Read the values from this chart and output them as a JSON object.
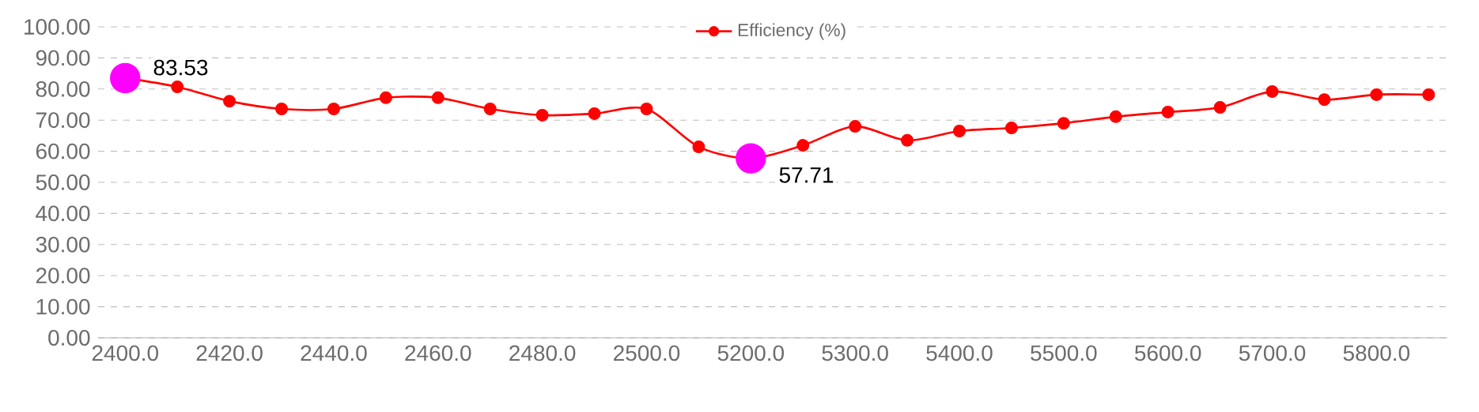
{
  "chart_data": {
    "type": "line",
    "categories": [
      "2400.0",
      null,
      "2420.0",
      null,
      "2440.0",
      null,
      "2460.0",
      null,
      "2480.0",
      null,
      "2500.0",
      null,
      "5200.0",
      null,
      "5300.0",
      null,
      "5400.0",
      null,
      "5500.0",
      null,
      "5600.0",
      null,
      "5700.0",
      null,
      "5800.0",
      null
    ],
    "series": [
      {
        "name": "Efficiency (%)",
        "color": "#ff0000",
        "values": [
          83.53,
          80.7,
          76.1,
          73.6,
          73.6,
          77.2,
          77.2,
          73.6,
          71.6,
          72.1,
          73.6,
          61.4,
          57.71,
          61.9,
          68.0,
          63.5,
          66.5,
          67.5,
          69.0,
          71.1,
          72.6,
          74.1,
          79.2,
          76.6,
          78.2,
          78.2
        ],
        "colors": [
          "#ff00ff",
          "#ff0000",
          "#ff0000",
          "#ff0000",
          "#ff0000",
          "#ff0000",
          "#ff0000",
          "#ff0000",
          "#ff0000",
          "#ff0000",
          "#ff0000",
          "#ff0000",
          "#ff00ff",
          "#ff0000",
          "#ff0000",
          "#ff0000",
          "#ff0000",
          "#ff0000",
          "#ff0000",
          "#ff0000",
          "#ff0000",
          "#ff0000",
          "#ff0000",
          "#ff0000",
          "#ff0000",
          "#ff0000"
        ],
        "value_labels": [
          "83.53",
          null,
          null,
          null,
          null,
          null,
          null,
          null,
          null,
          null,
          null,
          null,
          "57.71",
          null,
          null,
          null,
          null,
          null,
          null,
          null,
          null,
          null,
          null,
          null,
          null,
          null
        ]
      }
    ],
    "ylim": [
      0,
      100
    ],
    "yticks": [
      {
        "value": 0,
        "label": "0.00"
      },
      {
        "value": 10,
        "label": "10.00"
      },
      {
        "value": 20,
        "label": "20.00"
      },
      {
        "value": 30,
        "label": "30.00"
      },
      {
        "value": 40,
        "label": "40.00"
      },
      {
        "value": 50,
        "label": "50.00"
      },
      {
        "value": 60,
        "label": "60.00"
      },
      {
        "value": 70,
        "label": "70.00"
      },
      {
        "value": 80,
        "label": "80.00"
      },
      {
        "value": 90,
        "label": "90.00"
      },
      {
        "value": 100,
        "label": "100.00"
      }
    ],
    "grid": "y",
    "legend": "top",
    "marker": "circle"
  }
}
